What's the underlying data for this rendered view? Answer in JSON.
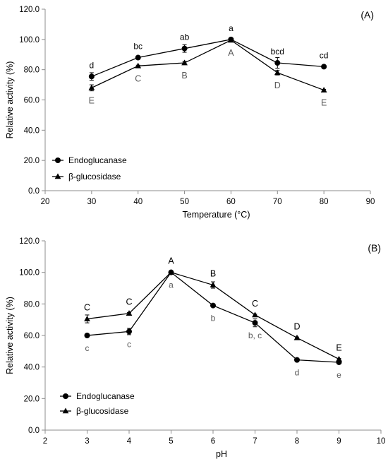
{
  "chart_data": [
    {
      "type": "line",
      "panel_label": "(A)",
      "xlabel": "Temperature (°C)",
      "ylabel": "Relative activity (%)",
      "xlim": [
        20,
        90
      ],
      "ylim": [
        0,
        120
      ],
      "x_ticks": [
        "20",
        "30",
        "40",
        "50",
        "60",
        "70",
        "80",
        "90"
      ],
      "y_ticks": [
        "0.0",
        "20.0",
        "40.0",
        "60.0",
        "80.0",
        "100.0",
        "120.0"
      ],
      "grid": false,
      "legend_position": "bottom-left",
      "x": [
        30,
        40,
        50,
        60,
        70,
        80
      ],
      "series": [
        {
          "name": "Endoglucanase",
          "marker": "circle",
          "values": [
            75.5,
            88.0,
            94.0,
            100.0,
            84.5,
            82.0
          ],
          "errors": [
            2.5,
            1.0,
            2.5,
            0.5,
            3.5,
            0.5
          ],
          "letters": [
            "d",
            "bc",
            "ab",
            "a",
            "bcd",
            "cd"
          ],
          "letters_position": "above"
        },
        {
          "name": "β-glucosidase",
          "marker": "triangle",
          "values": [
            68.0,
            82.5,
            84.5,
            99.5,
            78.0,
            66.5
          ],
          "errors": [
            2.0,
            0.5,
            1.0,
            0.5,
            1.5,
            0.5
          ],
          "letters": [
            "E",
            "C",
            "B",
            "A",
            "D",
            "E"
          ],
          "letters_position": "below"
        }
      ]
    },
    {
      "type": "line",
      "panel_label": "(B)",
      "xlabel": "pH",
      "ylabel": "Relative activity (%)",
      "xlim": [
        2,
        10
      ],
      "ylim": [
        0,
        120
      ],
      "x_ticks": [
        "2",
        "3",
        "4",
        "5",
        "6",
        "7",
        "8",
        "9",
        "10"
      ],
      "y_ticks": [
        "0.0",
        "20.0",
        "40.0",
        "60.0",
        "80.0",
        "100.0",
        "120.0"
      ],
      "grid": false,
      "legend_position": "bottom-left",
      "x": [
        3,
        4,
        5,
        6,
        7,
        8,
        9
      ],
      "series": [
        {
          "name": "Endoglucanase",
          "marker": "circle",
          "values": [
            60.0,
            62.5,
            100.0,
            79.0,
            68.0,
            44.5,
            43.0
          ],
          "errors": [
            0.5,
            2.0,
            0.5,
            0.5,
            2.5,
            0.5,
            1.0
          ],
          "letters": [
            "c",
            "c",
            "a",
            "b",
            "b, c",
            "d",
            "e"
          ],
          "letters_position": "below"
        },
        {
          "name": "β-glucosidase",
          "marker": "triangle",
          "values": [
            70.5,
            74.0,
            100.0,
            92.0,
            73.0,
            58.5,
            45.0
          ],
          "errors": [
            2.5,
            0.5,
            0.5,
            2.0,
            0.5,
            0.5,
            0.5
          ],
          "letters": [
            "C",
            "C",
            "A",
            "B",
            "C",
            "D",
            "E"
          ],
          "letters_position": "above"
        }
      ]
    }
  ]
}
